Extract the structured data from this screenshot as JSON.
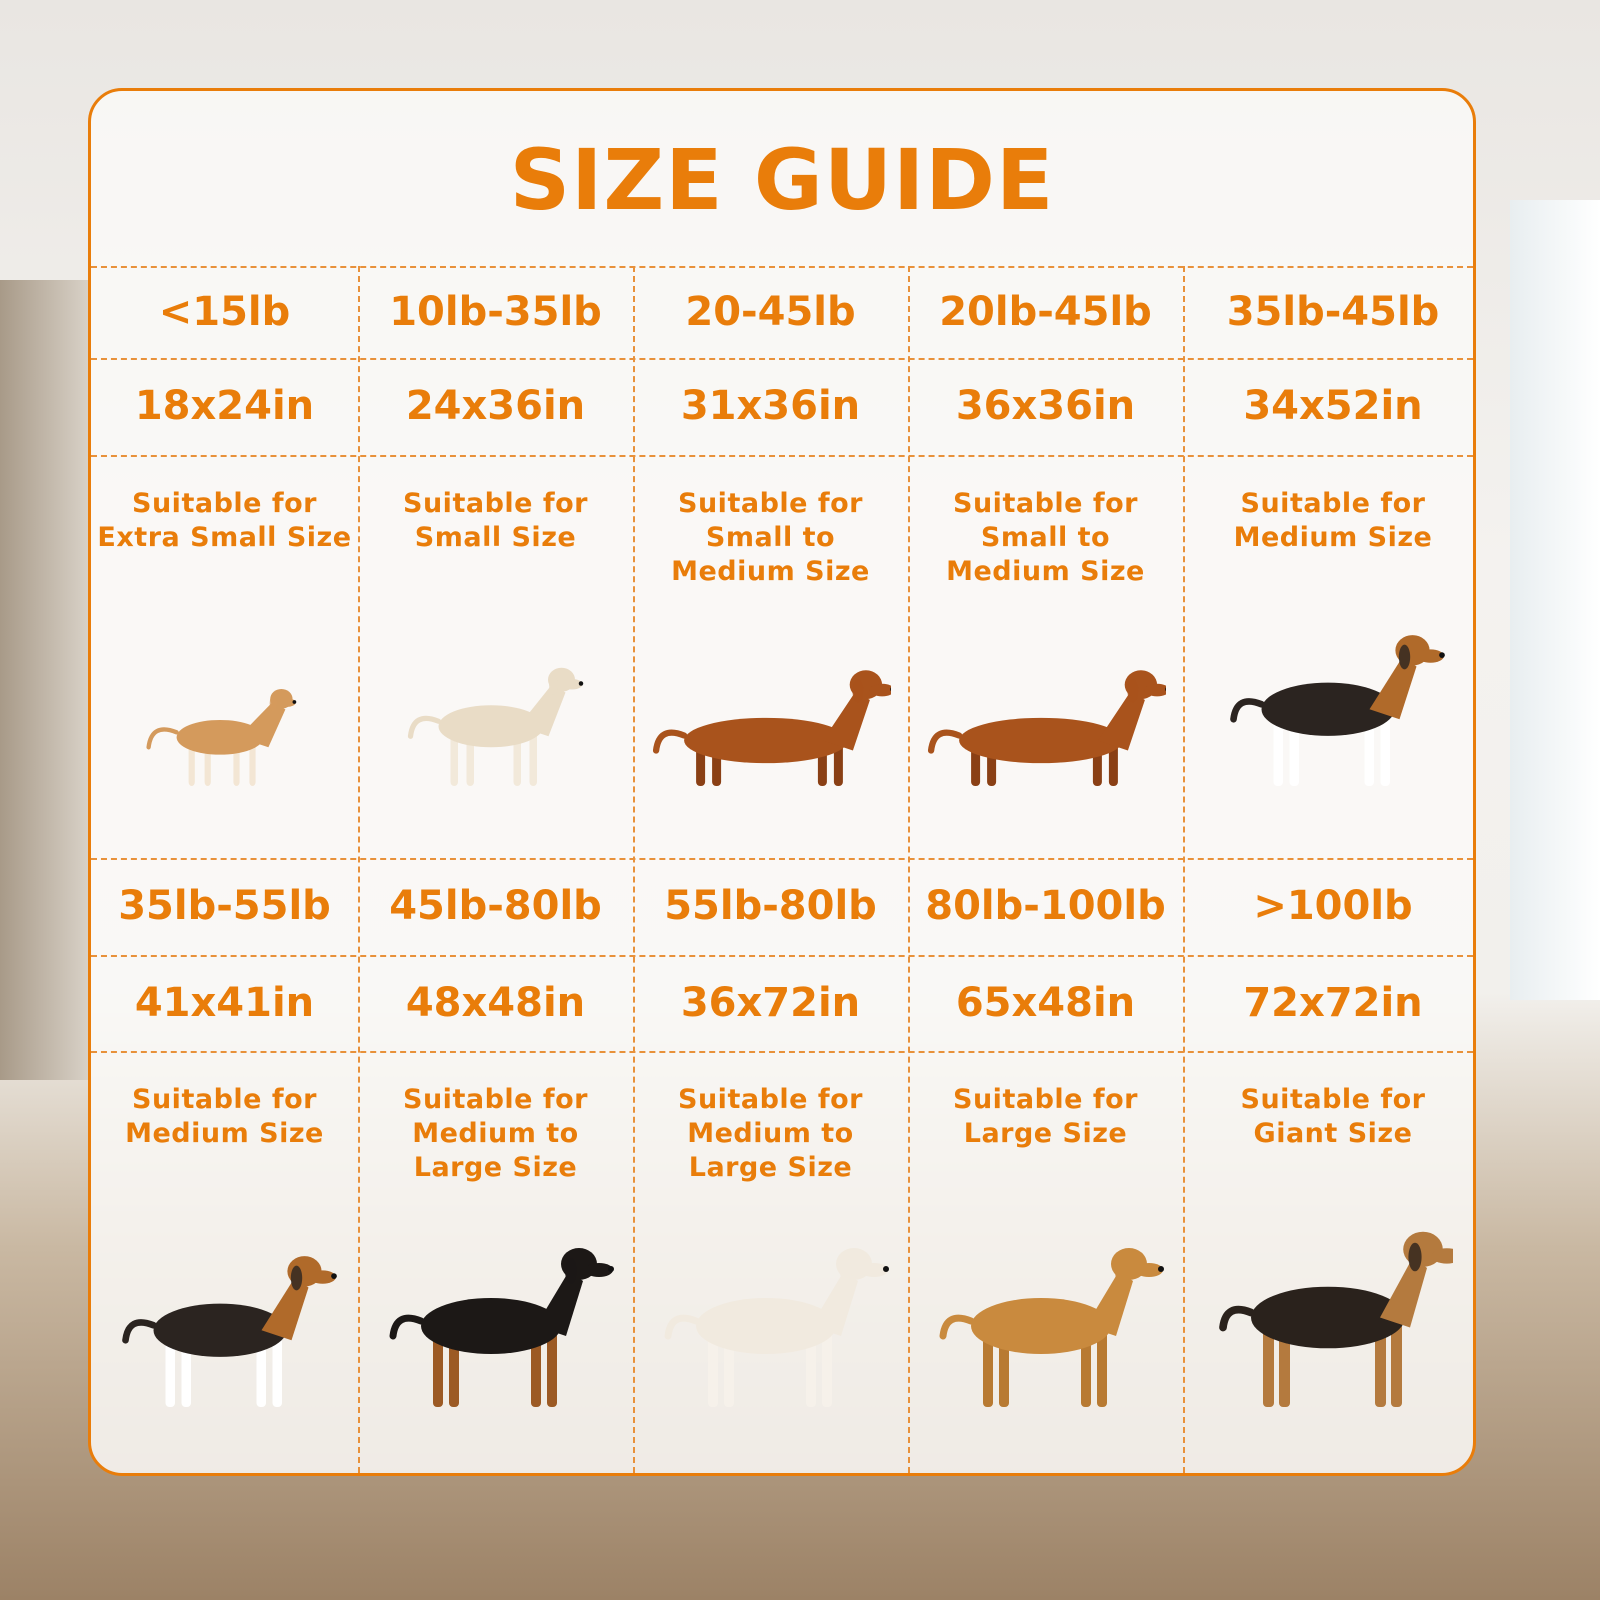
{
  "title": "SIZE GUIDE",
  "accent_color": "#e97d0a",
  "sizes": [
    {
      "weight": "<15lb",
      "dimensions": "18x24in",
      "suitable": [
        "Suitable for",
        "Extra Small Size"
      ],
      "dog_icon": "chihuahua-dog-image"
    },
    {
      "weight": "10lb-35lb",
      "dimensions": "24x36in",
      "suitable": [
        "Suitable for",
        "Small Size"
      ],
      "dog_icon": "french-bulldog-image"
    },
    {
      "weight": "20-45lb",
      "dimensions": "31x36in",
      "suitable": [
        "Suitable for",
        "Small to",
        "Medium Size"
      ],
      "dog_icon": "dachshund-dog-image"
    },
    {
      "weight": "20lb-45lb",
      "dimensions": "36x36in",
      "suitable": [
        "Suitable for",
        "Small to",
        "Medium Size"
      ],
      "dog_icon": "dachshund-dog-image"
    },
    {
      "weight": "35lb-45lb",
      "dimensions": "34x52in",
      "suitable": [
        "Suitable for",
        "Medium Size"
      ],
      "dog_icon": "beagle-dog-image"
    },
    {
      "weight": "35lb-55lb",
      "dimensions": "41x41in",
      "suitable": [
        "Suitable for",
        "Medium Size"
      ],
      "dog_icon": "beagle-dog-image"
    },
    {
      "weight": "45lb-80lb",
      "dimensions": "48x48in",
      "suitable": [
        "Suitable for",
        "Medium to",
        "Large Size"
      ],
      "dog_icon": "rottweiler-dog-image"
    },
    {
      "weight": "55lb-80lb",
      "dimensions": "36x72in",
      "suitable": [
        "Suitable for",
        "Medium to",
        "Large Size"
      ],
      "dog_icon": "labrador-dog-image"
    },
    {
      "weight": "80lb-100lb",
      "dimensions": "65x48in",
      "suitable": [
        "Suitable for",
        "Large Size"
      ],
      "dog_icon": "golden-retriever-dog-image"
    },
    {
      "weight": ">100lb",
      "dimensions": "72x72in",
      "suitable": [
        "Suitable for",
        "Giant Size"
      ],
      "dog_icon": "german-shepherd-dog-image"
    }
  ]
}
